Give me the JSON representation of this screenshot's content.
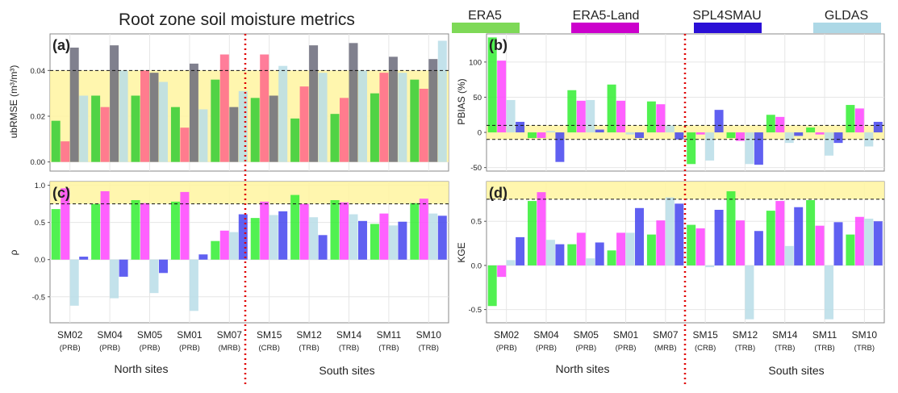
{
  "figure_title": "Root zone soil moisture metrics",
  "legend": [
    {
      "name": "ERA5",
      "color": "#7ed957"
    },
    {
      "name": "ERA5-Land",
      "color": "#cc00cc"
    },
    {
      "name": "SPL4SMAU",
      "color": "#2a0fd6"
    },
    {
      "name": "GLDAS",
      "color": "#add8e6"
    }
  ],
  "sites": [
    {
      "code": "SM02",
      "basin": "(PRB)"
    },
    {
      "code": "SM04",
      "basin": "(PRB)"
    },
    {
      "code": "SM05",
      "basin": "(PRB)"
    },
    {
      "code": "SM01",
      "basin": "(PRB)"
    },
    {
      "code": "SM07",
      "basin": "(MRB)"
    },
    {
      "code": "SM15",
      "basin": "(CRB)"
    },
    {
      "code": "SM12",
      "basin": "(TRB)"
    },
    {
      "code": "SM14",
      "basin": "(TRB)"
    },
    {
      "code": "SM11",
      "basin": "(TRB)"
    },
    {
      "code": "SM10",
      "basin": "(TRB)"
    }
  ],
  "group_labels": {
    "north": "North sites",
    "south": "South sites"
  },
  "chart_data": [
    {
      "panel": "(a)",
      "type": "bar",
      "ylabel": "ubRMSE (m³/m³)",
      "ylim": [
        -0.004,
        0.056
      ],
      "ticks": [
        0.0,
        0.02,
        0.04
      ],
      "tick_labels": [
        "0.00",
        "0.02",
        "0.04"
      ],
      "band": [
        0,
        0.04
      ],
      "ref_lines": [
        0.04
      ],
      "colors": [
        "#33cc33",
        "#ff6688",
        "#6a6a7a",
        "#b8dde8"
      ],
      "series": [
        {
          "values": [
            0.018,
            0.029,
            0.029,
            0.024,
            0.036,
            0.028,
            0.019,
            0.021,
            0.03,
            0.036
          ]
        },
        {
          "values": [
            0.009,
            0.024,
            0.04,
            0.015,
            0.047,
            0.047,
            0.033,
            0.028,
            0.039,
            0.032
          ]
        },
        {
          "values": [
            0.05,
            0.051,
            0.039,
            0.043,
            0.024,
            0.029,
            0.051,
            0.052,
            0.046,
            0.045
          ]
        },
        {
          "values": [
            0.029,
            0.04,
            0.035,
            0.023,
            0.031,
            0.042,
            0.039,
            0.04,
            0.039,
            0.053
          ]
        }
      ]
    },
    {
      "panel": "(b)",
      "type": "bar",
      "ylabel": "PBIAS (%)",
      "ylim": [
        -55,
        140
      ],
      "ticks": [
        -50,
        0,
        50,
        100
      ],
      "tick_labels": [
        "-50",
        "0",
        "50",
        "100"
      ],
      "band": [
        -10,
        10
      ],
      "ref_lines": [
        10,
        -10
      ],
      "colors": [
        "#33ee33",
        "#ff44ff",
        "#b8dde8",
        "#4444ee"
      ],
      "series": [
        {
          "values": [
            135,
            -8,
            60,
            68,
            44,
            -45,
            -8,
            25,
            7,
            39
          ]
        },
        {
          "values": [
            102,
            -8,
            45,
            45,
            40,
            -3,
            -12,
            22,
            -3,
            34
          ]
        },
        {
          "values": [
            46,
            2,
            46,
            -3,
            10,
            -40,
            -45,
            -15,
            -33,
            -20
          ]
        },
        {
          "values": [
            15,
            -42,
            4,
            -8,
            -10,
            32,
            -46,
            -5,
            -15,
            15
          ]
        }
      ]
    },
    {
      "panel": "(c)",
      "type": "bar",
      "ylabel": "ρ",
      "ylim": [
        -0.85,
        1.05
      ],
      "ticks": [
        -0.5,
        0.0,
        0.5,
        1.0
      ],
      "tick_labels": [
        "-0.5",
        "0.0",
        "0.5",
        "1.0"
      ],
      "band": [
        0.75,
        1.05
      ],
      "ref_lines": [
        0.75
      ],
      "colors": [
        "#33ee33",
        "#ff44ff",
        "#b8dde8",
        "#4444ee"
      ],
      "series": [
        {
          "values": [
            0.68,
            0.75,
            0.8,
            0.78,
            0.25,
            0.56,
            0.87,
            0.8,
            0.48,
            0.76
          ]
        },
        {
          "values": [
            0.96,
            0.92,
            0.76,
            0.91,
            0.39,
            0.78,
            0.75,
            0.77,
            0.62,
            0.82
          ]
        },
        {
          "values": [
            -0.62,
            -0.52,
            -0.45,
            -0.69,
            0.37,
            0.6,
            0.57,
            0.61,
            0.46,
            0.62
          ]
        },
        {
          "values": [
            0.04,
            -0.23,
            -0.18,
            0.07,
            0.61,
            0.65,
            0.33,
            0.52,
            0.51,
            0.59
          ]
        }
      ]
    },
    {
      "panel": "(d)",
      "type": "bar",
      "ylabel": "KGE",
      "ylim": [
        -0.65,
        0.95
      ],
      "ticks": [
        -0.5,
        0.0,
        0.5
      ],
      "tick_labels": [
        "-0.5",
        "0.0",
        "0.5"
      ],
      "band": [
        0.75,
        0.95
      ],
      "ref_lines": [
        0.75
      ],
      "colors": [
        "#33ee33",
        "#ff44ff",
        "#b8dde8",
        "#4444ee"
      ],
      "series": [
        {
          "values": [
            -0.46,
            0.73,
            0.24,
            0.17,
            0.35,
            0.46,
            0.84,
            0.62,
            0.74,
            0.35
          ]
        },
        {
          "values": [
            -0.13,
            0.83,
            0.37,
            0.37,
            0.51,
            0.42,
            0.51,
            0.73,
            0.45,
            0.55
          ]
        },
        {
          "values": [
            0.06,
            0.29,
            0.08,
            0.37,
            0.77,
            -0.02,
            -0.61,
            0.22,
            -0.61,
            0.53
          ]
        },
        {
          "values": [
            0.32,
            0.24,
            0.26,
            0.65,
            0.7,
            0.63,
            0.39,
            0.66,
            0.49,
            0.5
          ]
        }
      ]
    }
  ]
}
